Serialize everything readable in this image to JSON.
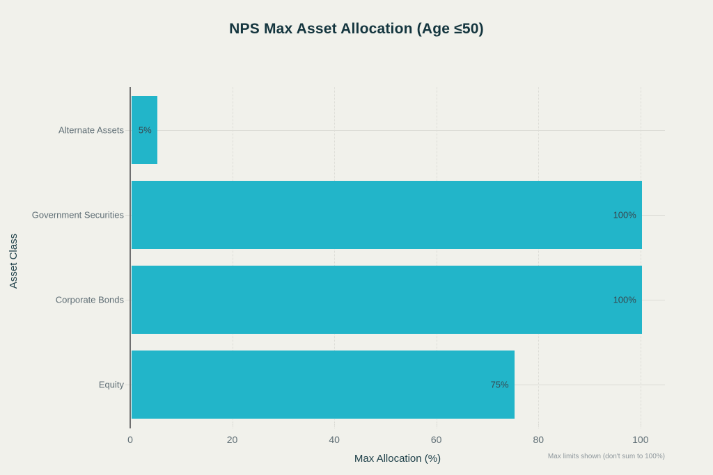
{
  "chart_data": {
    "type": "bar",
    "orientation": "horizontal",
    "title": "NPS Max Asset Allocation (Age ≤50)",
    "categories": [
      "Alternate Assets",
      "Government Securities",
      "Corporate Bonds",
      "Equity"
    ],
    "values": [
      5,
      100,
      100,
      75
    ],
    "value_labels": [
      "5%",
      "100%",
      "100%",
      "75%"
    ],
    "xlabel": "Max Allocation (%)",
    "ylabel": "Asset Class",
    "xticks": [
      "0",
      "20",
      "40",
      "60",
      "80",
      "100"
    ],
    "xtick_values": [
      0,
      20,
      40,
      60,
      80,
      100
    ],
    "xlim": [
      0,
      104.8
    ],
    "grid": true,
    "legend": "none",
    "footnote": "Max limits shown (don't sum to 100%)",
    "colors": {
      "bar": "#22b5c9",
      "background": "#f1f1eb",
      "title_text": "#14353e",
      "axis_title_text": "#1c3e47",
      "tick_text": "#5e6d74",
      "value_label_text": "#37474f",
      "gridline": "#dadad4",
      "axis_line": "#6f6f6f",
      "footnote_text": "#8f989d"
    }
  }
}
